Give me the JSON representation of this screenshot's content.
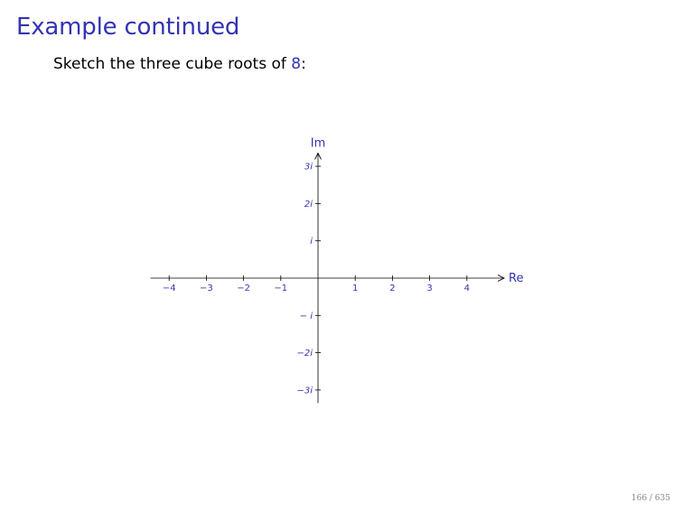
{
  "slide": {
    "title": "Example continued",
    "prompt_prefix": "Sketch the three cube roots of ",
    "prompt_number": "8",
    "prompt_suffix": ":",
    "page_number": "166 / 635"
  },
  "plane": {
    "x_axis_label": "Re",
    "y_axis_label": "Im",
    "x_range": [
      -4,
      4
    ],
    "y_range": [
      -3,
      3
    ],
    "x_ticks": [
      {
        "value": -4,
        "label": "−4"
      },
      {
        "value": -3,
        "label": "−3"
      },
      {
        "value": -2,
        "label": "−2"
      },
      {
        "value": -1,
        "label": "−1"
      },
      {
        "value": 1,
        "label": "1"
      },
      {
        "value": 2,
        "label": "2"
      },
      {
        "value": 3,
        "label": "3"
      },
      {
        "value": 4,
        "label": "4"
      }
    ],
    "y_ticks": [
      {
        "value": 3,
        "label": "3i"
      },
      {
        "value": 2,
        "label": "2i"
      },
      {
        "value": 1,
        "label": "i"
      },
      {
        "value": -1,
        "label": "− i"
      },
      {
        "value": -2,
        "label": "−2i"
      },
      {
        "value": -3,
        "label": "−3i"
      }
    ],
    "colors": {
      "axis": "#000000",
      "labels": "#3333b3"
    }
  }
}
